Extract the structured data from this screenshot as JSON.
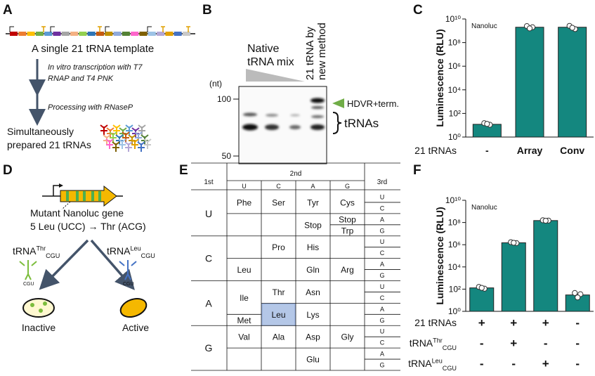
{
  "panel_labels": [
    "A",
    "B",
    "C",
    "D",
    "E",
    "F"
  ],
  "panel_a": {
    "template": "A single 21 tRNA template",
    "step1": [
      "In vitro transcription with T7",
      "RNAP and T4 PNK"
    ],
    "step2": "Processing with RNaseP",
    "result": [
      "Simultaneously",
      "prepared 21 tRNAs"
    ]
  },
  "panel_b": {
    "native": [
      "Native",
      "tRNA mix"
    ],
    "new_method": [
      "21 tRNA by",
      "new method"
    ],
    "unit": "(nt)",
    "markers": [
      100,
      50
    ],
    "band_upper": "HDVR+term.",
    "band_lower": "tRNAs"
  },
  "panel_d": {
    "gene": "Mutant Nanoluc gene",
    "mutation": "5 Leu (UCC) → Thr (ACG)",
    "trna_thr": {
      "base": "tRNA",
      "sup": "Thr",
      "sub": "CGU"
    },
    "trna_leu": {
      "base": "tRNA",
      "sup": "Leu",
      "sub": "CGU"
    },
    "anticodon": "CGU",
    "inactive": "Inactive",
    "active": "Active"
  },
  "codon_table": {
    "first_header": "1st",
    "second_header": "2nd",
    "third_header": "3rd",
    "bases": [
      "U",
      "C",
      "A",
      "G"
    ],
    "cells": [
      [
        [
          "Phe"
        ],
        [
          "Ser"
        ],
        [
          "Tyr",
          "Stop"
        ],
        [
          "Cys",
          "Stop",
          "Trp"
        ]
      ],
      [
        [
          "Leu"
        ],
        [
          "Pro"
        ],
        [
          "His",
          "Gln"
        ],
        [
          "Arg"
        ]
      ],
      [
        [
          "Ile",
          "Met"
        ],
        [
          "Thr",
          "Leu"
        ],
        [
          "Asn",
          "Lys"
        ],
        []
      ],
      [
        [
          "Val"
        ],
        [
          "Ala"
        ],
        [
          "Asp",
          "Glu"
        ],
        [
          "Gly"
        ]
      ]
    ]
  },
  "chart_data": [
    {
      "type": "bar",
      "log_scale": true,
      "annotation": "Nanoluc",
      "y_label": "Luminescence (RLU)",
      "x_label": "21 tRNAs",
      "color": "#14877f",
      "categories": [
        "-",
        "Array",
        "Conv"
      ],
      "values": [
        12,
        2000000000,
        2000000000
      ],
      "replicates": [
        [
          15,
          11,
          13
        ],
        [
          2500000000,
          2000000000,
          1600000000
        ],
        [
          2600000000,
          1400000000,
          1800000000
        ]
      ],
      "ylim": [
        1,
        10000000000
      ],
      "yticks": [
        {
          "value": 1,
          "label": "10⁰"
        },
        {
          "value": 100,
          "label": "10²"
        },
        {
          "value": 10000,
          "label": "10⁴"
        },
        {
          "value": 1000000,
          "label": "10⁶"
        },
        {
          "value": 100000000,
          "label": "10⁸"
        },
        {
          "value": 10000000000,
          "label": "10¹⁰"
        }
      ]
    },
    {
      "type": "bar",
      "log_scale": true,
      "annotation": "Nanoluc",
      "y_label": "Luminescence (RLU)",
      "color": "#14877f",
      "categories": [
        null,
        null,
        null,
        null
      ],
      "values": [
        130,
        1500000,
        150000000,
        30
      ],
      "replicates": [
        [
          160,
          110,
          130
        ],
        [
          1700000,
          1400000,
          1500000
        ],
        [
          160000000,
          150000000,
          145000000
        ],
        [
          45,
          35,
          18
        ]
      ],
      "conditions": [
        {
          "label": "21 tRNAs",
          "signs": [
            "+",
            "+",
            "+",
            "-"
          ]
        },
        {
          "label": {
            "base": "tRNA",
            "sup": "Thr",
            "sub": "CGU"
          },
          "signs": [
            "-",
            "+",
            "-",
            "-"
          ]
        },
        {
          "label": {
            "base": "tRNA",
            "sup": "Leu",
            "sub": "CGU"
          },
          "signs": [
            "-",
            "-",
            "+",
            "-"
          ]
        }
      ],
      "ylim": [
        1,
        10000000000
      ],
      "yticks": [
        {
          "value": 1,
          "label": "10⁰"
        },
        {
          "value": 100,
          "label": "10²"
        },
        {
          "value": 10000,
          "label": "10⁴"
        },
        {
          "value": 1000000,
          "label": "10⁶"
        },
        {
          "value": 100000000,
          "label": "10⁸"
        },
        {
          "value": 10000000000,
          "label": "10¹⁰"
        }
      ]
    }
  ]
}
